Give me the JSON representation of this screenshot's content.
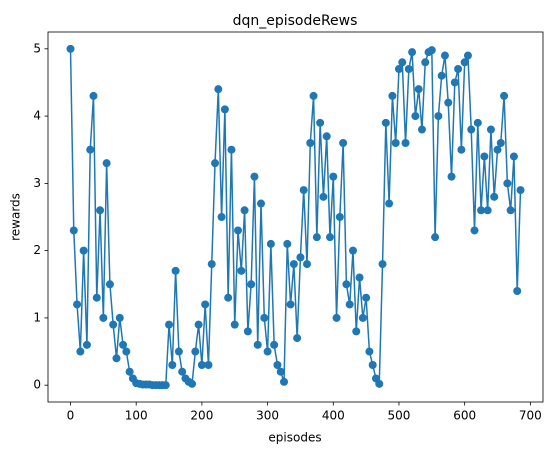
{
  "chart_data": {
    "type": "line",
    "title": "dqn_episodeRews",
    "xlabel": "episodes",
    "ylabel": "rewards",
    "x": [
      0,
      5,
      10,
      15,
      20,
      25,
      30,
      35,
      40,
      45,
      50,
      55,
      60,
      65,
      70,
      75,
      80,
      85,
      90,
      95,
      100,
      105,
      110,
      115,
      120,
      125,
      130,
      135,
      140,
      145,
      150,
      155,
      160,
      165,
      170,
      175,
      180,
      185,
      190,
      195,
      200,
      205,
      210,
      215,
      220,
      225,
      230,
      235,
      240,
      245,
      250,
      255,
      260,
      265,
      270,
      275,
      280,
      285,
      290,
      295,
      300,
      305,
      310,
      315,
      320,
      325,
      330,
      335,
      340,
      345,
      350,
      355,
      360,
      365,
      370,
      375,
      380,
      385,
      390,
      395,
      400,
      405,
      410,
      415,
      420,
      425,
      430,
      435,
      440,
      445,
      450,
      455,
      460,
      465,
      470,
      475,
      480,
      485,
      490,
      495,
      500,
      505,
      510,
      515,
      520,
      525,
      530,
      535,
      540,
      545,
      550,
      555,
      560,
      565,
      570,
      575,
      580,
      585,
      590,
      595,
      600,
      605,
      610,
      615,
      620,
      625,
      630,
      635,
      640,
      645,
      650,
      655,
      660,
      665,
      670,
      675,
      680,
      685
    ],
    "series": [
      {
        "name": "rewards",
        "color": "#1f77b4",
        "values": [
          5.0,
          2.3,
          1.2,
          0.5,
          2.0,
          0.6,
          3.5,
          4.3,
          1.3,
          2.6,
          1.0,
          3.3,
          1.5,
          0.9,
          0.4,
          1.0,
          0.6,
          0.5,
          0.2,
          0.1,
          0.03,
          0.02,
          0.01,
          0.01,
          0.01,
          0,
          0,
          0,
          0,
          0,
          0.9,
          0.3,
          1.7,
          0.5,
          0.2,
          0.1,
          0.05,
          0.02,
          0.5,
          0.9,
          0.3,
          1.2,
          0.3,
          1.8,
          3.3,
          4.4,
          2.5,
          4.1,
          1.3,
          3.5,
          0.9,
          2.3,
          1.7,
          2.6,
          0.8,
          1.5,
          3.1,
          0.6,
          2.7,
          1.0,
          0.5,
          2.1,
          0.6,
          0.3,
          0.2,
          0.05,
          2.1,
          1.2,
          1.8,
          0.7,
          1.9,
          2.9,
          1.8,
          3.6,
          4.3,
          2.2,
          3.9,
          2.8,
          3.7,
          2.2,
          3.1,
          1.0,
          2.5,
          3.6,
          1.5,
          1.2,
          2.0,
          0.8,
          1.6,
          1.0,
          1.3,
          0.5,
          0.3,
          0.1,
          0.02,
          1.8,
          3.9,
          2.7,
          4.3,
          3.6,
          4.7,
          4.8,
          3.6,
          4.7,
          4.95,
          4.0,
          4.4,
          3.8,
          4.8,
          4.95,
          4.98,
          2.2,
          4.0,
          4.6,
          4.9,
          4.2,
          3.1,
          4.5,
          4.7,
          3.5,
          4.8,
          4.9,
          3.8,
          2.3,
          3.9,
          2.6,
          3.4,
          2.6,
          3.8,
          2.8,
          3.5,
          3.6,
          4.3,
          3.0,
          2.6,
          3.4,
          1.4,
          2.9
        ]
      }
    ],
    "xlim": [
      -34.25,
      719.25
    ],
    "ylim": [
      -0.25,
      5.25
    ],
    "xticks": [
      0,
      100,
      200,
      300,
      400,
      500,
      600,
      700
    ],
    "yticks": [
      0,
      1,
      2,
      3,
      4,
      5
    ],
    "grid": false,
    "markers": true
  }
}
